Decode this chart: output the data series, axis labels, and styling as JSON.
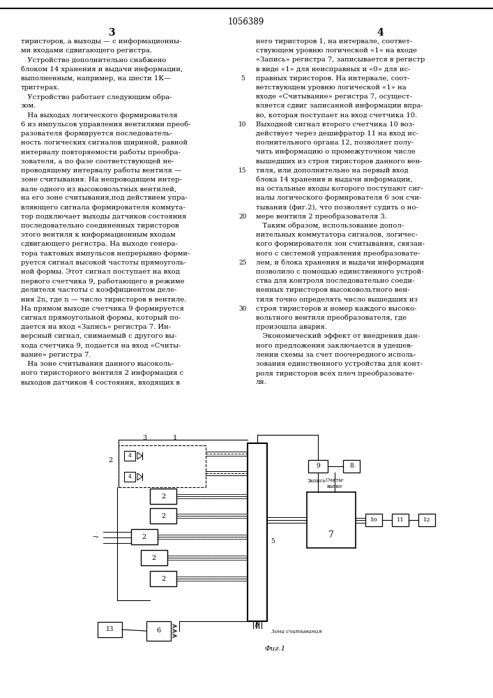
{
  "patent_number": "1056389",
  "page_number_left": "3",
  "page_number_right": "4",
  "bg_color": "#ffffff",
  "text_color": "#000000",
  "col1_text": [
    "тиристоров, а выходы — с информационны-",
    "ми входами сдвигающего регистра.",
    "   Устройство дополнительно снабжено",
    "блоком 14 хранения и выдачи информации,",
    "выполненным, например, на шести 1К—",
    "триггерах.",
    "   Устройство работает следующим обра-",
    "зом.",
    "   На выходах логического формирователя",
    "6 из импульсов управления вентилями преоб-",
    "разователя формируется последователь-",
    "ность логических сигналов шириной, равной",
    "интервалу повторяемости работы преобра-",
    "зователя, а по фазе соответствующей не-",
    "проводящему интервалу работы вентиля —",
    "зоне считывания. На непроводящем интер-",
    "вале одного из высоковольтных вентилей,",
    "на его зоне считывания,под действием упра-",
    "вляющего сигнала формирователя коммута-",
    "тор подключает выходы датчиков состояния",
    "последовательно соединенных тиристоров",
    "этого вентиля к информационным входам",
    "сдвигающего регистра. На выходе генера-",
    "тора тактовых импульсов непрерывно форми-",
    "руется сигнал высокой частоты прямоуголь-",
    "ной формы. Этот сигнал поступает на вход",
    "первого счетчика 9, работающего в режиме",
    "делителя частоты с коэффициентом деле-",
    "ния 2n, где n — число тиристоров в вентиле.",
    "На прямом выходе счетчика 9 формируется",
    "сигнал прямоугольной формы, который по-",
    "дается на вход «Запись» регистра 7. Ин-",
    "версный сигнал, снимаемый с другого вы-",
    "хода счетчика 9, подается на вход «Считы-",
    "вание» регистра 7.",
    "   На зоне считывания данного высоколь-",
    "ного тиристорного вентиля 2 информация с",
    "выходов датчиков 4 состояния, входящих в"
  ],
  "col2_text": [
    "него тиристоров 1, на интервале, соответ-",
    "ствующем уровню логической «1» на входе",
    "«Запись» регистра 7, записывается в регистр",
    "в виде «1» для неисправных и «0» для ис-",
    "правных тиристоров. На интервале, соот-",
    "ветствующем уровню логической «1» на",
    "входе «Считывание» регистра 7, осущест-",
    "вляется сдвиг записанной информации впра-",
    "во, которая поступает на вход счетчика 10.",
    "Выходной сигнал второго счетчика 10 воз-",
    "действует через дешифратор 11 на вход ис-",
    "полнительного органа 12, позволяет полу-",
    "чить информацию о промежуточном числе",
    "вышедших из строя тиристоров данного вен-",
    "тиля, или дополнительно на первый вход",
    "блока 14 хранения и выдачи информации,",
    "на остальные входы которого поступают сиг-",
    "налы логического формирователя 6 зон счи-",
    "тывания (фиг.2), что позволяет судить о но-",
    "мере вентиля 2 преобразователя 3.",
    "   Таким образом, использование допол-",
    "нительных коммутатора сигналов, логичес-",
    "кого формирователя зон считывания, связан-",
    "ного с системой управления преобразовате-",
    "лем, и блока хранения и выдачи информации",
    "позволило с помощью единственного устрой-",
    "ства для контроля последовательно соеди-",
    "ненных тиристоров высоковольтного вен-",
    "тиля точно определять число вышедших из",
    "строя тиристоров и номер каждого высоко-",
    "вольтного вентиля преобразователя, где",
    "произошла авария.",
    "   Экономический эффект от внедрения дан-",
    "ного предложения заключается в удешев-",
    "лении схемы за счет поочередного исполь-",
    "зования единственного устройства для конт-",
    "роля тиристоров всех плеч преобразовате-",
    "ля."
  ],
  "line_numbers": [
    5,
    10,
    15,
    20,
    25,
    30
  ],
  "fig_label": "Фиг.1",
  "zona_label": "Зона считывания",
  "zapis_label": "Запись",
  "schit_label": "Считы-\nвание"
}
